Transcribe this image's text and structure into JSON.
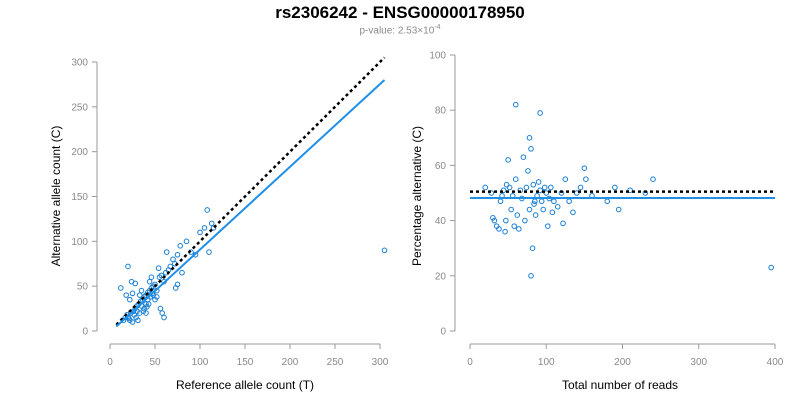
{
  "title": "rs2306242 - ENSG00000178950",
  "subtitle": {
    "prefix": "p-value: 2.53×10",
    "exponent": "-4"
  },
  "colors": {
    "point": "#1a7fd4",
    "fit_line": "#1f8fe8",
    "reference_line": "#000000",
    "axis": "#9a9a9a",
    "tick_label": "#8a8a8a"
  },
  "chart_data": [
    {
      "type": "scatter",
      "xlabel": "Reference allele count (T)",
      "ylabel": "Alternative allele count (C)",
      "xlim": [
        0,
        300
      ],
      "ylim": [
        0,
        300
      ],
      "xticks": [
        0,
        50,
        100,
        150,
        200,
        250,
        300
      ],
      "yticks": [
        0,
        50,
        100,
        150,
        200,
        250,
        300
      ],
      "grid": false,
      "fit_line": {
        "x": [
          7,
          305
        ],
        "y": [
          5,
          280
        ]
      },
      "reference_line": {
        "x": [
          7,
          305
        ],
        "y": [
          7,
          305
        ]
      },
      "points": [
        [
          12,
          48
        ],
        [
          20,
          72
        ],
        [
          24,
          55
        ],
        [
          28,
          53
        ],
        [
          18,
          40
        ],
        [
          22,
          35
        ],
        [
          25,
          42
        ],
        [
          15,
          12
        ],
        [
          17,
          15
        ],
        [
          19,
          18
        ],
        [
          21,
          14
        ],
        [
          23,
          20
        ],
        [
          26,
          22
        ],
        [
          28,
          25
        ],
        [
          30,
          28
        ],
        [
          32,
          30
        ],
        [
          34,
          33
        ],
        [
          36,
          35
        ],
        [
          38,
          38
        ],
        [
          40,
          40
        ],
        [
          42,
          43
        ],
        [
          44,
          45
        ],
        [
          46,
          48
        ],
        [
          48,
          50
        ],
        [
          50,
          52
        ],
        [
          35,
          28
        ],
        [
          38,
          25
        ],
        [
          40,
          30
        ],
        [
          42,
          35
        ],
        [
          45,
          38
        ],
        [
          47,
          42
        ],
        [
          30,
          22
        ],
        [
          33,
          20
        ],
        [
          37,
          22
        ],
        [
          41,
          27
        ],
        [
          43,
          30
        ],
        [
          27,
          18
        ],
        [
          29,
          15
        ],
        [
          31,
          12
        ],
        [
          25,
          10
        ],
        [
          22,
          12
        ],
        [
          20,
          15
        ],
        [
          55,
          60
        ],
        [
          57,
          62
        ],
        [
          60,
          55
        ],
        [
          62,
          65
        ],
        [
          52,
          45
        ],
        [
          54,
          70
        ],
        [
          56,
          25
        ],
        [
          58,
          20
        ],
        [
          60,
          15
        ],
        [
          63,
          88
        ],
        [
          65,
          68
        ],
        [
          67,
          72
        ],
        [
          70,
          80
        ],
        [
          72,
          75
        ],
        [
          75,
          85
        ],
        [
          78,
          95
        ],
        [
          73,
          48
        ],
        [
          75,
          52
        ],
        [
          80,
          65
        ],
        [
          85,
          100
        ],
        [
          90,
          88
        ],
        [
          95,
          85
        ],
        [
          100,
          110
        ],
        [
          105,
          115
        ],
        [
          108,
          135
        ],
        [
          110,
          88
        ],
        [
          113,
          120
        ],
        [
          115,
          115
        ],
        [
          48,
          40
        ],
        [
          50,
          35
        ],
        [
          52,
          38
        ],
        [
          40,
          20
        ],
        [
          35,
          45
        ],
        [
          33,
          40
        ],
        [
          44,
          55
        ],
        [
          46,
          60
        ],
        [
          305,
          90
        ]
      ]
    },
    {
      "type": "scatter",
      "xlabel": "Total number of reads",
      "ylabel": "Percentage alternative (C)",
      "xlim": [
        0,
        400
      ],
      "ylim": [
        0,
        100
      ],
      "xticks": [
        0,
        100,
        200,
        300,
        400
      ],
      "yticks": [
        0,
        20,
        40,
        60,
        80,
        100
      ],
      "grid": false,
      "fit_line": {
        "x": [
          0,
          400
        ],
        "y": [
          48.2,
          48.2
        ]
      },
      "reference_line": {
        "x": [
          0,
          400
        ],
        "y": [
          50.5,
          50.5
        ]
      },
      "points": [
        [
          20,
          52
        ],
        [
          28,
          50
        ],
        [
          30,
          41
        ],
        [
          32,
          40
        ],
        [
          35,
          38
        ],
        [
          38,
          37
        ],
        [
          40,
          47
        ],
        [
          42,
          49
        ],
        [
          44,
          51
        ],
        [
          46,
          36
        ],
        [
          48,
          53
        ],
        [
          50,
          62
        ],
        [
          52,
          52
        ],
        [
          54,
          44
        ],
        [
          56,
          49
        ],
        [
          58,
          38
        ],
        [
          60,
          55
        ],
        [
          62,
          42
        ],
        [
          64,
          37
        ],
        [
          66,
          51
        ],
        [
          68,
          48
        ],
        [
          70,
          63
        ],
        [
          72,
          40
        ],
        [
          74,
          52
        ],
        [
          76,
          58
        ],
        [
          78,
          44
        ],
        [
          80,
          20
        ],
        [
          82,
          30
        ],
        [
          84,
          46
        ],
        [
          86,
          42
        ],
        [
          88,
          49
        ],
        [
          90,
          54
        ],
        [
          92,
          51
        ],
        [
          94,
          47
        ],
        [
          96,
          44
        ],
        [
          98,
          52
        ],
        [
          100,
          50
        ],
        [
          102,
          38
        ],
        [
          104,
          48
        ],
        [
          106,
          52
        ],
        [
          108,
          43
        ],
        [
          110,
          47
        ],
        [
          115,
          45
        ],
        [
          120,
          50
        ],
        [
          122,
          39
        ],
        [
          125,
          55
        ],
        [
          130,
          47
        ],
        [
          135,
          43
        ],
        [
          140,
          50
        ],
        [
          145,
          52
        ],
        [
          150,
          59
        ],
        [
          152,
          55
        ],
        [
          160,
          49
        ],
        [
          180,
          47
        ],
        [
          190,
          52
        ],
        [
          195,
          44
        ],
        [
          210,
          51
        ],
        [
          230,
          50
        ],
        [
          240,
          55
        ],
        [
          60,
          82
        ],
        [
          78,
          70
        ],
        [
          80,
          66
        ],
        [
          92,
          79
        ],
        [
          47,
          40
        ],
        [
          83,
          53
        ],
        [
          85,
          47
        ],
        [
          395,
          23
        ]
      ]
    }
  ]
}
